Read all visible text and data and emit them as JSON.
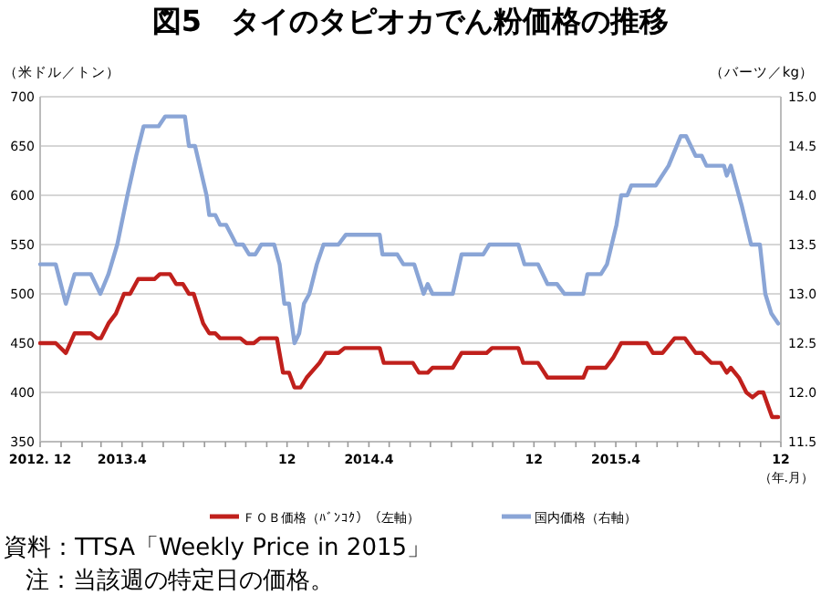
{
  "chart_data": {
    "type": "line",
    "title": "図5　タイのタピオカでん粉価格の推移",
    "ylabel": "（米ドル／トン）",
    "y2label": "（バーツ／kg）",
    "xlabel": "（年.月）",
    "xlim": [
      "2012-12",
      "2015-12"
    ],
    "xticks": [
      {
        "value": "2012-12",
        "label": "2012. 12"
      },
      {
        "value": "2013-01",
        "label": null
      },
      {
        "value": "2013-02",
        "label": null
      },
      {
        "value": "2013-03",
        "label": null
      },
      {
        "value": "2013-04",
        "label": "2013.4"
      },
      {
        "value": "2013-05",
        "label": null
      },
      {
        "value": "2013-06",
        "label": null
      },
      {
        "value": "2013-07",
        "label": null
      },
      {
        "value": "2013-08",
        "label": null
      },
      {
        "value": "2013-09",
        "label": null
      },
      {
        "value": "2013-10",
        "label": null
      },
      {
        "value": "2013-11",
        "label": null
      },
      {
        "value": "2013-12",
        "label": "12"
      },
      {
        "value": "2014-01",
        "label": null
      },
      {
        "value": "2014-02",
        "label": null
      },
      {
        "value": "2014-03",
        "label": null
      },
      {
        "value": "2014-04",
        "label": "2014.4"
      },
      {
        "value": "2014-05",
        "label": null
      },
      {
        "value": "2014-06",
        "label": null
      },
      {
        "value": "2014-07",
        "label": null
      },
      {
        "value": "2014-08",
        "label": null
      },
      {
        "value": "2014-09",
        "label": null
      },
      {
        "value": "2014-10",
        "label": null
      },
      {
        "value": "2014-11",
        "label": null
      },
      {
        "value": "2014-12",
        "label": "12"
      },
      {
        "value": "2015-01",
        "label": null
      },
      {
        "value": "2015-02",
        "label": null
      },
      {
        "value": "2015-03",
        "label": null
      },
      {
        "value": "2015-04",
        "label": "2015.4"
      },
      {
        "value": "2015-05",
        "label": null
      },
      {
        "value": "2015-06",
        "label": null
      },
      {
        "value": "2015-07",
        "label": null
      },
      {
        "value": "2015-08",
        "label": null
      },
      {
        "value": "2015-09",
        "label": null
      },
      {
        "value": "2015-10",
        "label": null
      },
      {
        "value": "2015-11",
        "label": null
      },
      {
        "value": "2015-12",
        "label": "12"
      }
    ],
    "ylim": [
      350,
      700
    ],
    "yticks": [
      350,
      400,
      450,
      500,
      550,
      600,
      650,
      700
    ],
    "y2lim": [
      11.5,
      15
    ],
    "y2ticks": [
      11.5,
      {
        "value": 12,
        "label": "12.0"
      },
      12.5,
      {
        "value": 13,
        "label": "13.0"
      },
      13.5,
      {
        "value": 14,
        "label": "14.0"
      },
      14.5,
      {
        "value": 15,
        "label": "15.0"
      }
    ],
    "grid": "y",
    "legend": "bottom",
    "series": [
      {
        "name": "ＦＯＢ価格（ﾊﾞﾝｺｸ）（左軸）",
        "color": "#c0201c",
        "axis": "y",
        "x": [
          "2012-12-01",
          "2012-12-24",
          "2013-01-08",
          "2013-01-21",
          "2013-02-14",
          "2013-02-23",
          "2013-03-01",
          "2013-03-12",
          "2013-03-23",
          "2013-04-04",
          "2013-04-13",
          "2013-04-25",
          "2013-05-19",
          "2013-05-27",
          "2013-06-11",
          "2013-06-20",
          "2013-06-30",
          "2013-07-09",
          "2013-07-16",
          "2013-07-30",
          "2013-08-08",
          "2013-08-17",
          "2013-08-24",
          "2013-09-23",
          "2013-10-02",
          "2013-10-13",
          "2013-10-22",
          "2013-11-16",
          "2013-11-25",
          "2013-12-04",
          "2013-12-12",
          "2013-12-21",
          "2013-12-30",
          "2014-01-18",
          "2014-01-27",
          "2014-02-15",
          "2014-02-24",
          "2014-04-17",
          "2014-04-23",
          "2014-06-05",
          "2014-06-14",
          "2014-06-27",
          "2014-07-04",
          "2014-08-03",
          "2014-08-16",
          "2014-09-22",
          "2014-09-30",
          "2014-11-08",
          "2014-11-15",
          "2014-12-07",
          "2014-12-21",
          "2015-02-12",
          "2015-02-18",
          "2015-03-17",
          "2015-03-28",
          "2015-04-09",
          "2015-05-17",
          "2015-05-26",
          "2015-06-09",
          "2015-06-27",
          "2015-07-12",
          "2015-07-28",
          "2015-08-06",
          "2015-08-20",
          "2015-09-03",
          "2015-09-12",
          "2015-09-18",
          "2015-09-30",
          "2015-10-11",
          "2015-10-20",
          "2015-10-29",
          "2015-11-05",
          "2015-11-18",
          "2015-11-27"
        ],
        "values": [
          450,
          450,
          440,
          460,
          460,
          455,
          455,
          470,
          480,
          500,
          500,
          515,
          515,
          520,
          520,
          510,
          510,
          500,
          500,
          470,
          460,
          460,
          455,
          455,
          450,
          450,
          455,
          455,
          420,
          420,
          405,
          405,
          415,
          430,
          440,
          440,
          445,
          445,
          430,
          430,
          420,
          420,
          425,
          425,
          440,
          440,
          445,
          445,
          430,
          430,
          415,
          415,
          425,
          425,
          435,
          450,
          450,
          440,
          440,
          455,
          455,
          440,
          440,
          430,
          430,
          420,
          425,
          415,
          400,
          395,
          400,
          400,
          375,
          375
        ]
      },
      {
        "name": "国内価格（右軸）",
        "color": "#8aa5d6",
        "axis": "y2",
        "x": [
          "2012-12-01",
          "2012-12-24",
          "2013-01-08",
          "2013-01-21",
          "2013-02-14",
          "2013-02-28",
          "2013-03-12",
          "2013-03-25",
          "2013-04-09",
          "2013-04-22",
          "2013-05-03",
          "2013-05-25",
          "2013-06-04",
          "2013-07-03",
          "2013-07-09",
          "2013-07-18",
          "2013-08-04",
          "2013-08-08",
          "2013-08-17",
          "2013-08-24",
          "2013-09-02",
          "2013-09-17",
          "2013-09-27",
          "2013-10-06",
          "2013-10-15",
          "2013-10-24",
          "2013-11-12",
          "2013-11-20",
          "2013-11-27",
          "2013-12-04",
          "2013-12-12",
          "2013-12-19",
          "2013-12-26",
          "2014-01-03",
          "2014-01-14",
          "2014-01-24",
          "2014-02-15",
          "2014-02-26",
          "2014-04-17",
          "2014-04-21",
          "2014-05-13",
          "2014-05-22",
          "2014-06-07",
          "2014-06-21",
          "2014-06-27",
          "2014-07-04",
          "2014-08-03",
          "2014-08-16",
          "2014-09-17",
          "2014-09-26",
          "2014-11-08",
          "2014-11-17",
          "2014-12-07",
          "2014-12-21",
          "2015-01-04",
          "2015-01-15",
          "2015-02-12",
          "2015-02-18",
          "2015-03-10",
          "2015-03-19",
          "2015-04-02",
          "2015-04-09",
          "2015-04-18",
          "2015-04-24",
          "2015-05-30",
          "2015-06-18",
          "2015-07-06",
          "2015-07-14",
          "2015-07-28",
          "2015-08-06",
          "2015-08-13",
          "2015-09-08",
          "2015-09-12",
          "2015-09-18",
          "2015-10-04",
          "2015-10-18",
          "2015-10-31",
          "2015-11-08",
          "2015-11-17",
          "2015-11-27"
        ],
        "values": [
          13.3,
          13.3,
          12.9,
          13.2,
          13.2,
          13.0,
          13.2,
          13.5,
          14.0,
          14.4,
          14.7,
          14.7,
          14.8,
          14.8,
          14.5,
          14.5,
          14.0,
          13.8,
          13.8,
          13.7,
          13.7,
          13.5,
          13.5,
          13.4,
          13.4,
          13.5,
          13.5,
          13.3,
          12.9,
          12.9,
          12.5,
          12.6,
          12.9,
          13.0,
          13.3,
          13.5,
          13.5,
          13.6,
          13.6,
          13.4,
          13.4,
          13.3,
          13.3,
          13.0,
          13.1,
          13.0,
          13.0,
          13.4,
          13.4,
          13.5,
          13.5,
          13.3,
          13.3,
          13.1,
          13.1,
          13.0,
          13.0,
          13.2,
          13.2,
          13.3,
          13.7,
          14.0,
          14.0,
          14.1,
          14.1,
          14.3,
          14.6,
          14.6,
          14.4,
          14.4,
          14.3,
          14.3,
          14.2,
          14.3,
          13.9,
          13.5,
          13.5,
          13.0,
          12.8,
          12.7
        ]
      }
    ],
    "annotations": [
      "資料：TTSA「Weekly Price in 2015」",
      "注：当該週の特定日の価格。"
    ]
  }
}
